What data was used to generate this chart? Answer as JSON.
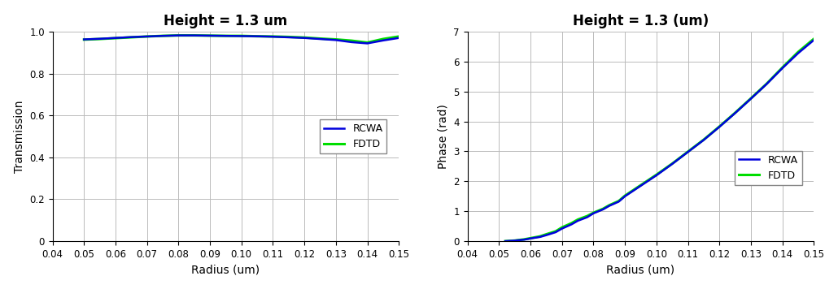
{
  "title": "Height = 1.3 um",
  "title2": "Height = 1.3 (um)",
  "xlabel": "Radius (um)",
  "ylabel1": "Transmission",
  "ylabel2": "Phase (rad)",
  "rcwa_color": "#0000dd",
  "fdtd_color": "#00dd00",
  "rcwa_linewidth": 1.8,
  "fdtd_linewidth": 2.2,
  "background_color": "#ffffff",
  "grid_color": "#bbbbbb",
  "xlim": [
    0.04,
    0.15
  ],
  "ylim1": [
    0,
    1.0
  ],
  "ylim2": [
    0,
    7
  ],
  "xticks": [
    0.04,
    0.05,
    0.06,
    0.07,
    0.08,
    0.09,
    0.1,
    0.11,
    0.12,
    0.13,
    0.14,
    0.15
  ],
  "yticks1": [
    0,
    0.2,
    0.4,
    0.6,
    0.8,
    1.0
  ],
  "yticks2": [
    0,
    1,
    2,
    3,
    4,
    5,
    6,
    7
  ],
  "transmission_radius": [
    0.05,
    0.055,
    0.06,
    0.065,
    0.07,
    0.075,
    0.08,
    0.085,
    0.09,
    0.095,
    0.1,
    0.105,
    0.11,
    0.115,
    0.12,
    0.125,
    0.13,
    0.135,
    0.14,
    0.145,
    0.15
  ],
  "transmission_rcwa": [
    0.963,
    0.966,
    0.97,
    0.974,
    0.977,
    0.98,
    0.982,
    0.982,
    0.981,
    0.98,
    0.979,
    0.978,
    0.976,
    0.973,
    0.97,
    0.965,
    0.96,
    0.95,
    0.944,
    0.958,
    0.97
  ],
  "transmission_fdtd": [
    0.962,
    0.965,
    0.969,
    0.973,
    0.977,
    0.98,
    0.982,
    0.982,
    0.981,
    0.98,
    0.98,
    0.978,
    0.977,
    0.975,
    0.972,
    0.967,
    0.963,
    0.957,
    0.948,
    0.965,
    0.977
  ],
  "phase_radius": [
    0.052,
    0.055,
    0.058,
    0.06,
    0.063,
    0.065,
    0.068,
    0.07,
    0.073,
    0.075,
    0.078,
    0.08,
    0.083,
    0.085,
    0.088,
    0.09,
    0.095,
    0.1,
    0.105,
    0.11,
    0.115,
    0.12,
    0.125,
    0.13,
    0.135,
    0.14,
    0.145,
    0.15
  ],
  "phase_rcwa": [
    0.0,
    0.02,
    0.05,
    0.09,
    0.14,
    0.2,
    0.3,
    0.42,
    0.56,
    0.68,
    0.8,
    0.93,
    1.06,
    1.18,
    1.32,
    1.5,
    1.85,
    2.2,
    2.58,
    2.98,
    3.38,
    3.82,
    4.28,
    4.76,
    5.25,
    5.78,
    6.28,
    6.72
  ],
  "phase_fdtd": [
    0.0,
    0.02,
    0.06,
    0.1,
    0.16,
    0.23,
    0.33,
    0.46,
    0.6,
    0.72,
    0.84,
    0.95,
    1.08,
    1.2,
    1.34,
    1.52,
    1.87,
    2.22,
    2.59,
    2.99,
    3.39,
    3.83,
    4.29,
    4.77,
    5.26,
    5.8,
    6.32,
    6.76
  ]
}
